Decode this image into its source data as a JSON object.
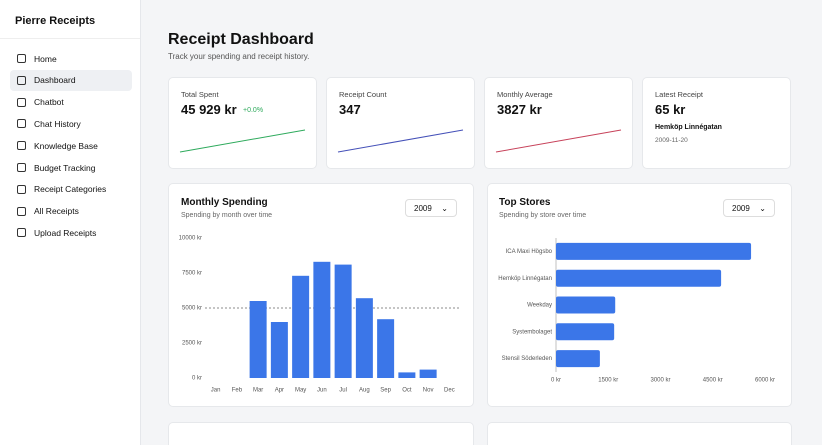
{
  "sidebar": {
    "title": "Pierre Receipts",
    "nav": [
      "Home",
      "Dashboard",
      "Chatbot",
      "Chat History",
      "Knowledge Base",
      "Budget Tracking",
      "Receipt Categories",
      "All Receipts",
      "Upload Receipts"
    ]
  },
  "header": {
    "title": "Receipt Dashboard",
    "subtitle": "Track your spending and receipt history."
  },
  "stats": [
    {
      "label": "Total Spent",
      "value": "45 929 kr",
      "delta": "+0.0%"
    },
    {
      "label": "Receipt Count",
      "value": "347"
    },
    {
      "label": "Monthly Average",
      "value": "3827 kr"
    },
    {
      "label": "Latest Receipt",
      "value": "65 kr",
      "store": "Hemköp Linnégatan",
      "date": "2009-11-20"
    }
  ],
  "chart_data": [
    {
      "type": "bar",
      "title": "Monthly Spending",
      "subtitle": "Spending by month over time",
      "selector": "2009",
      "categories": [
        "Jan",
        "Feb",
        "Mar",
        "Apr",
        "May",
        "Jun",
        "Jul",
        "Aug",
        "Sep",
        "Oct",
        "Nov",
        "Dec"
      ],
      "values": [
        0,
        0,
        5500,
        4000,
        7300,
        8300,
        8100,
        5700,
        4200,
        400,
        600,
        0
      ],
      "color": "#3b76e8",
      "ylim": [
        0,
        10000
      ],
      "yticks": [
        {
          "value": 0,
          "label": "0 kr"
        },
        {
          "value": 2500,
          "label": "2500 kr"
        },
        {
          "value": 5000,
          "label": "5000 kr"
        },
        {
          "value": 7500,
          "label": "7500 kr"
        },
        {
          "value": 10000,
          "label": "10000 kr"
        }
      ],
      "reference_line": 5000
    },
    {
      "type": "barh",
      "title": "Top Stores",
      "subtitle": "Spending by store over time",
      "selector": "2009",
      "categories": [
        "ICA Maxi Högsbo",
        "Hemköp Linnégatan",
        "Weekday",
        "Systembolaget",
        "Stensil Söderleden"
      ],
      "values": [
        5600,
        4740,
        1700,
        1670,
        1260
      ],
      "color": "#3b76e8",
      "xlim": [
        0,
        6000
      ],
      "xticks": [
        {
          "value": 0,
          "label": "0 kr"
        },
        {
          "value": 1500,
          "label": "1500 kr"
        },
        {
          "value": 3000,
          "label": "3000 kr"
        },
        {
          "value": 4500,
          "label": "4500 kr"
        },
        {
          "value": 6000,
          "label": "6000 kr"
        }
      ]
    }
  ]
}
